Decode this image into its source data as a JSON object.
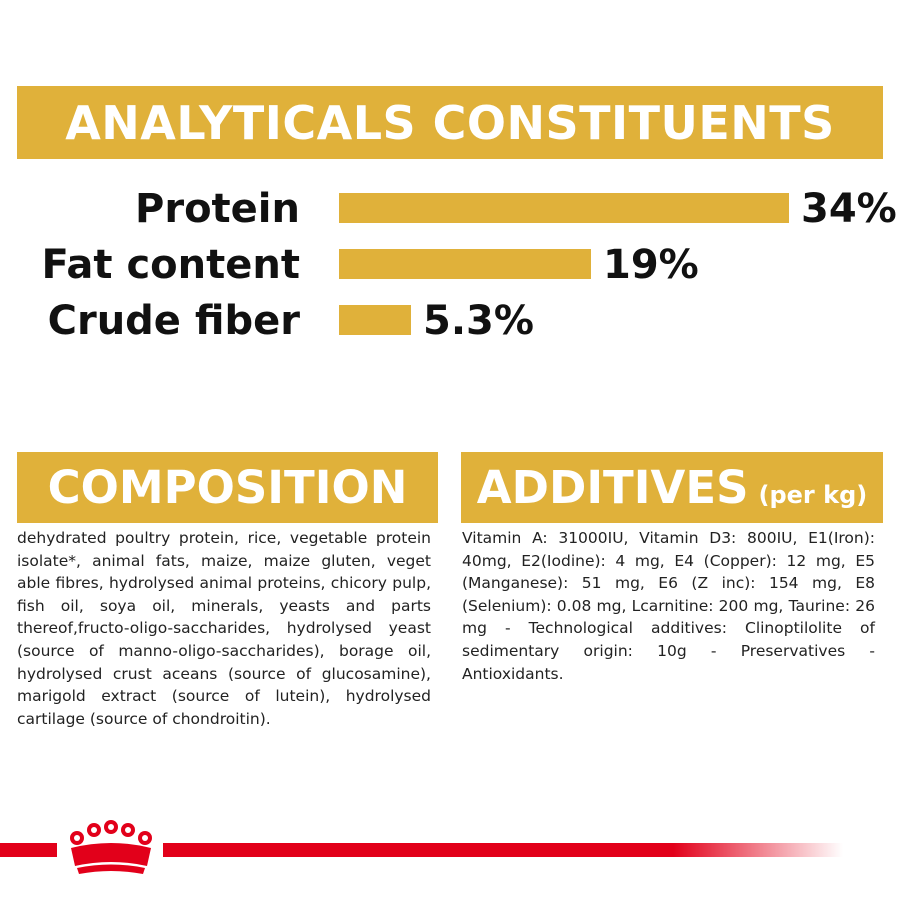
{
  "analytics": {
    "title": "ANALYTICALS CONSTITUENTS",
    "rows": [
      {
        "label": "Protein",
        "value": "34%",
        "fill_fraction": 1.0
      },
      {
        "label": "Fat content",
        "value": "19%",
        "fill_fraction": 0.56
      },
      {
        "label": "Crude fiber",
        "value": "5.3%",
        "fill_fraction": 0.16
      }
    ]
  },
  "composition": {
    "title": "COMPOSITION",
    "text": "dehydrated poultry protein, rice, vegetable protein isolate*, animal fats, maize, maize gluten, veget able fibres, hydrolysed animal proteins, chicory pulp, fish oil, soya oil, minerals, yeasts and parts thereof,fructo-oligo-saccharides, hydrolysed yeast (source of manno-oligo-saccharides), borage oil, hydrolysed crust aceans (source of glucosamine), marigold extract (source of lutein), hydrolysed cartilage (source of chondroitin)."
  },
  "additives": {
    "title": "ADDITIVES",
    "subtitle": "(per kg)",
    "text": "Vitamin A: 31000IU, Vitamin D3: 800IU, E1(Iron): 40mg, E2(Iodine): 4 mg, E4 (Copper): 12 mg, E5 (Manganese): 51 mg, E6 (Z inc): 154 mg, E8 (Selenium): 0.08 mg, Lcarnitine: 200 mg, Taurine: 26 mg - Technological additives: Clinoptilolite of sedimentary origin: 10g - Preservatives - Antioxidants."
  },
  "colors": {
    "accent": "#e0b13a",
    "brand_red": "#e2001a",
    "text": "#111111"
  },
  "footer": {
    "logo_icon": "crown-icon"
  }
}
